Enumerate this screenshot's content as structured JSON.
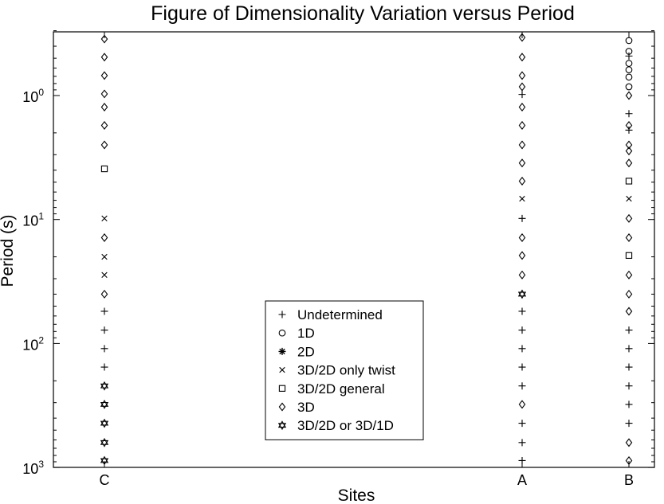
{
  "chart_data": {
    "type": "scatter",
    "title": "Figure of Dimensionality Variation versus Period",
    "xlabel": "Sites",
    "ylabel": "Period (s)",
    "y_scale": "log",
    "y_reversed": true,
    "ylim": [
      0.3,
      1000
    ],
    "categories": [
      "C",
      "A",
      "B"
    ],
    "y_ticks": [
      {
        "base": "10",
        "exp": "0",
        "value": 1
      },
      {
        "base": "10",
        "exp": "1",
        "value": 10
      },
      {
        "base": "10",
        "exp": "2",
        "value": 100
      },
      {
        "base": "10",
        "exp": "3",
        "value": 1000
      }
    ],
    "legend_position": "bottom-center",
    "series": [
      {
        "name": "Undetermined",
        "marker": "plus",
        "points": [
          {
            "x": "C",
            "y": 55
          },
          {
            "x": "C",
            "y": 78
          },
          {
            "x": "C",
            "y": 110
          },
          {
            "x": "C",
            "y": 155
          },
          {
            "x": "A",
            "y": 0.98
          },
          {
            "x": "A",
            "y": 9.8
          },
          {
            "x": "A",
            "y": 55
          },
          {
            "x": "A",
            "y": 78
          },
          {
            "x": "A",
            "y": 110
          },
          {
            "x": "A",
            "y": 155
          },
          {
            "x": "A",
            "y": 220
          },
          {
            "x": "A",
            "y": 440
          },
          {
            "x": "A",
            "y": 630
          },
          {
            "x": "A",
            "y": 880
          },
          {
            "x": "B",
            "y": 0.48
          },
          {
            "x": "B",
            "y": 1.4
          },
          {
            "x": "B",
            "y": 1.9
          },
          {
            "x": "B",
            "y": 78
          },
          {
            "x": "B",
            "y": 110
          },
          {
            "x": "B",
            "y": 155
          },
          {
            "x": "B",
            "y": 220
          },
          {
            "x": "B",
            "y": 310
          },
          {
            "x": "B",
            "y": 440
          }
        ]
      },
      {
        "name": "1D",
        "marker": "circle",
        "points": [
          {
            "x": "B",
            "y": 0.36
          },
          {
            "x": "B",
            "y": 0.44
          },
          {
            "x": "B",
            "y": 0.55
          },
          {
            "x": "B",
            "y": 0.62
          },
          {
            "x": "B",
            "y": 0.71
          },
          {
            "x": "B",
            "y": 0.85
          }
        ]
      },
      {
        "name": "2D",
        "marker": "asterisk",
        "points": []
      },
      {
        "name": "3D/2D only twist",
        "marker": "x",
        "points": [
          {
            "x": "C",
            "y": 9.8
          },
          {
            "x": "C",
            "y": 20
          },
          {
            "x": "C",
            "y": 28
          },
          {
            "x": "A",
            "y": 6.8
          },
          {
            "x": "B",
            "y": 6.8
          }
        ]
      },
      {
        "name": "3D/2D general",
        "marker": "square",
        "points": [
          {
            "x": "C",
            "y": 3.9
          },
          {
            "x": "B",
            "y": 4.9
          },
          {
            "x": "B",
            "y": 19.5
          }
        ]
      },
      {
        "name": "3D",
        "marker": "diamond",
        "points": [
          {
            "x": "C",
            "y": 0.35
          },
          {
            "x": "C",
            "y": 0.49
          },
          {
            "x": "C",
            "y": 0.69
          },
          {
            "x": "C",
            "y": 0.97
          },
          {
            "x": "C",
            "y": 1.24
          },
          {
            "x": "C",
            "y": 1.74
          },
          {
            "x": "C",
            "y": 2.5
          },
          {
            "x": "C",
            "y": 14
          },
          {
            "x": "C",
            "y": 40
          },
          {
            "x": "A",
            "y": 0.34
          },
          {
            "x": "A",
            "y": 0.49
          },
          {
            "x": "A",
            "y": 0.69
          },
          {
            "x": "A",
            "y": 0.85
          },
          {
            "x": "A",
            "y": 1.24
          },
          {
            "x": "A",
            "y": 1.74
          },
          {
            "x": "A",
            "y": 2.5
          },
          {
            "x": "A",
            "y": 3.5
          },
          {
            "x": "A",
            "y": 4.9
          },
          {
            "x": "A",
            "y": 14
          },
          {
            "x": "A",
            "y": 19.5
          },
          {
            "x": "A",
            "y": 28
          },
          {
            "x": "A",
            "y": 310
          },
          {
            "x": "B",
            "y": 1.0
          },
          {
            "x": "B",
            "y": 1.74
          },
          {
            "x": "B",
            "y": 2.5
          },
          {
            "x": "B",
            "y": 2.8
          },
          {
            "x": "B",
            "y": 3.5
          },
          {
            "x": "B",
            "y": 9.8
          },
          {
            "x": "B",
            "y": 14
          },
          {
            "x": "B",
            "y": 28
          },
          {
            "x": "B",
            "y": 40
          },
          {
            "x": "B",
            "y": 55
          },
          {
            "x": "B",
            "y": 630
          },
          {
            "x": "B",
            "y": 880
          }
        ]
      },
      {
        "name": "3D/2D or 3D/1D",
        "marker": "star",
        "points": [
          {
            "x": "C",
            "y": 220
          },
          {
            "x": "C",
            "y": 310
          },
          {
            "x": "C",
            "y": 440
          },
          {
            "x": "C",
            "y": 630
          },
          {
            "x": "C",
            "y": 880
          },
          {
            "x": "A",
            "y": 40
          }
        ]
      }
    ]
  }
}
